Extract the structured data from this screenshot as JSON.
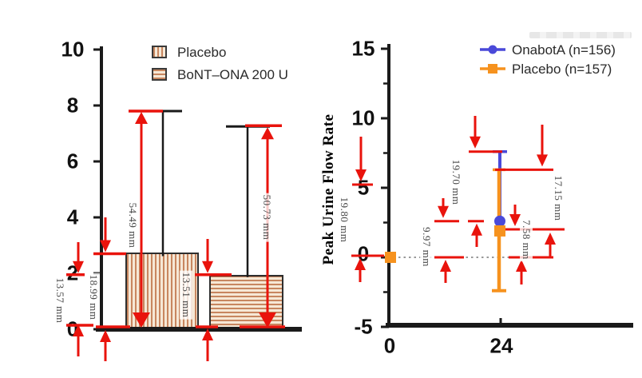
{
  "figure": {
    "background": "#ffffff",
    "description": "Two annotated clinical-trial figure panels with red ruler measurements"
  },
  "colors": {
    "red": "#e9130c",
    "blue": "#4a49d9",
    "orange": "#f6921e",
    "bar_stripe": "#c8865f",
    "bar_fill": "#f6e8d6",
    "axis": "#1a1a1a",
    "measure_text": "#474747",
    "dotted_line": "#999999",
    "smudge": "#e3e3e3"
  },
  "chart_data": [
    {
      "type": "bar",
      "title": "",
      "categories": [
        "Placebo",
        "BoNT-ONA 200 U"
      ],
      "values": [
        2.7,
        1.95
      ],
      "error_bar_tops": [
        7.8,
        7.25
      ],
      "ylim": [
        0,
        10
      ],
      "yticks": [
        10,
        8,
        6,
        4,
        2,
        0
      ],
      "grid": "off",
      "legend_position": "top-right-inside",
      "legend": [
        {
          "label": "Placebo",
          "pattern": "vertical-stripes"
        },
        {
          "label": "BoNT–ONA 200 U",
          "pattern": "horizontal-stripes"
        }
      ],
      "measurements": [
        {
          "label": "54.49 mm",
          "measures": "Placebo error-bar top to baseline",
          "from": 7.8,
          "to": 0
        },
        {
          "label": "50.73 mm",
          "measures": "BoNT-ONA error-bar top to baseline",
          "from": 7.25,
          "to": 0
        },
        {
          "label": "18.99 mm",
          "measures": "Placebo bar height",
          "from": 2.7,
          "to": 0
        },
        {
          "label": "13.57 mm",
          "measures": "BoNT-ONA bar-top level to baseline, left of axis",
          "from": 1.95,
          "to": 0
        },
        {
          "label": "13.51 mm",
          "measures": "BoNT-ONA bar height",
          "from": 1.95,
          "to": 0
        }
      ]
    },
    {
      "type": "scatter",
      "title": "",
      "ylabel": "Peak Urine Flow Rate",
      "xticks": [
        0,
        24
      ],
      "yticks": [
        15,
        10,
        5,
        0,
        -5
      ],
      "yticks_minor": [
        12.5,
        7.5,
        2.5,
        -2.5
      ],
      "ylim": [
        -5,
        15
      ],
      "grid": "off",
      "legend_position": "top-right-inside",
      "zero_reference_line": {
        "y": 0,
        "style": "dotted",
        "x_from": 0,
        "x_to": 24
      },
      "series": [
        {
          "name": "OnabotA (n=156)",
          "marker": "circle",
          "color": "blue",
          "points": [
            {
              "x": 24,
              "y": 2.6,
              "err_hi": 7.6
            }
          ]
        },
        {
          "name": "Placebo (n=157)",
          "marker": "square",
          "color": "orange",
          "points": [
            {
              "x": 0,
              "y": 0
            },
            {
              "x": 24,
              "y": 1.9,
              "err_hi": 6.3,
              "err_lo": -2.4
            }
          ]
        }
      ],
      "measurements": [
        {
          "label": "19.80 mm",
          "measures": "y-axis distance 5 to 0",
          "from": 5,
          "to": 0
        },
        {
          "label": "19.70 mm",
          "measures": "OnabotA upper error bar (7.6 to 2.6)",
          "from": 7.6,
          "to": 2.6
        },
        {
          "label": "9.97 mm",
          "measures": "OnabotA mean to zero line",
          "from": 2.6,
          "to": 0
        },
        {
          "label": "17.15 mm",
          "measures": "Placebo upper error bar (6.3 to 1.9)",
          "from": 6.3,
          "to": 1.9
        },
        {
          "label": "7.58 mm",
          "measures": "Placebo mean to zero line",
          "from": 1.9,
          "to": 0
        }
      ]
    }
  ]
}
